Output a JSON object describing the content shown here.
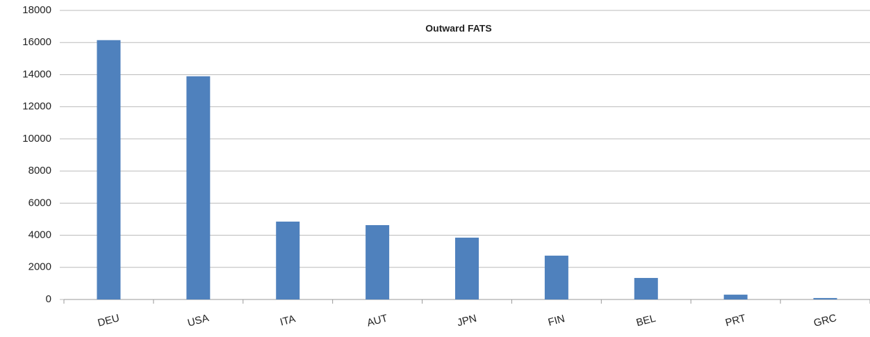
{
  "chart_data": {
    "type": "bar",
    "title": "Outward FATS",
    "categories": [
      "DEU",
      "USA",
      "ITA",
      "AUT",
      "JPN",
      "FIN",
      "BEL",
      "PRT",
      "GRC"
    ],
    "values": [
      16150,
      13900,
      4850,
      4630,
      3850,
      2730,
      1340,
      300,
      90
    ],
    "color": "#4f81bd",
    "ylim": [
      0,
      18000
    ],
    "yticks": [
      0,
      2000,
      4000,
      6000,
      8000,
      10000,
      12000,
      14000,
      16000,
      18000
    ],
    "grid": true
  }
}
